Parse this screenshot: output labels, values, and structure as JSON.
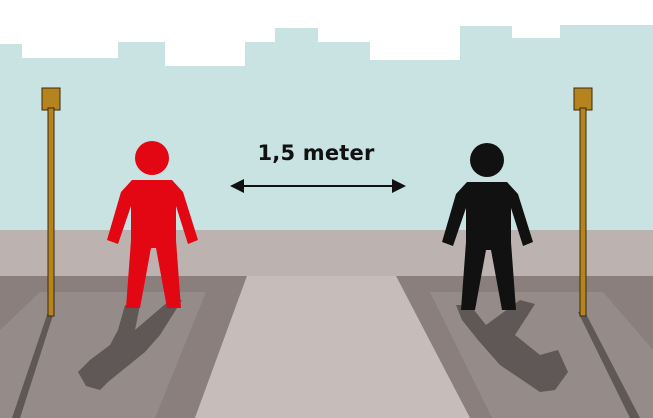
{
  "distance_label": "1,5 meter",
  "figures": [
    {
      "name": "left-person",
      "color": "#e30613"
    },
    {
      "name": "right-person",
      "color": "#111111"
    }
  ],
  "colors": {
    "sky": "#c9e2e2",
    "pavement": "#bcb3b1",
    "shadow_area": "#8a7f7d",
    "walkway": "#c6bdbb",
    "pole": "#b5841e"
  }
}
